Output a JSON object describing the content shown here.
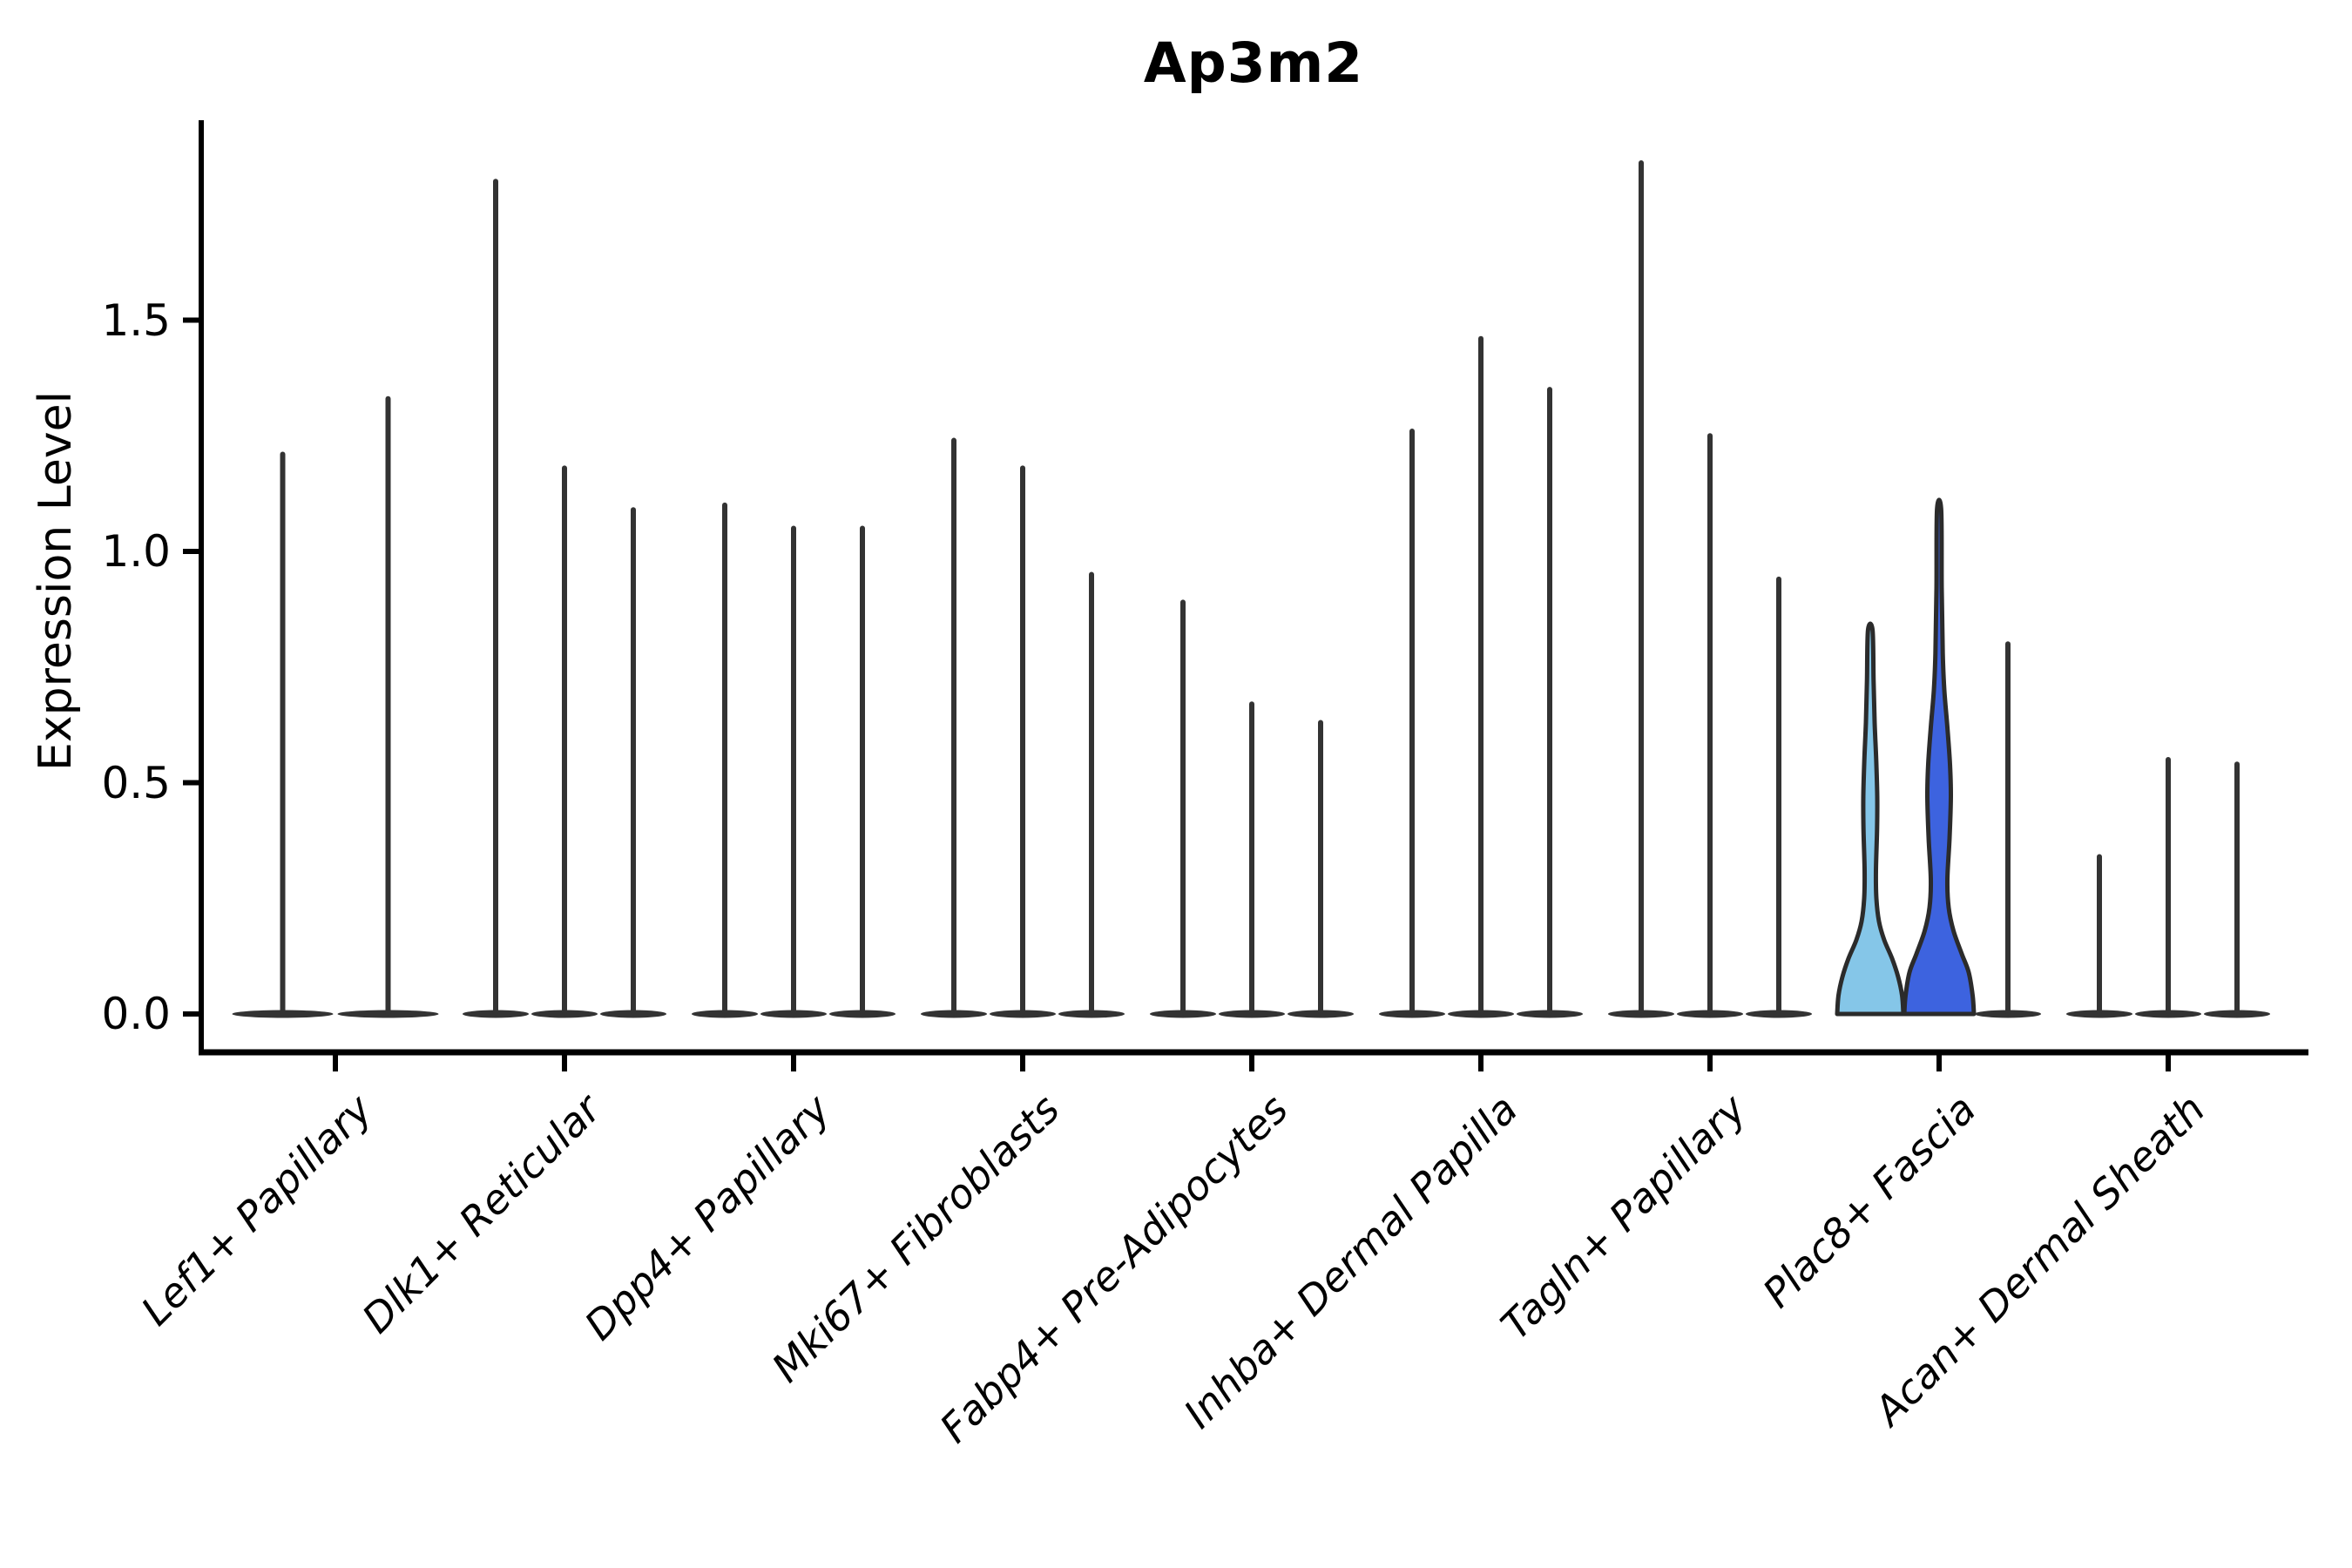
{
  "chart_data": {
    "type": "violin",
    "title": "Ap3m2",
    "xlabel": "",
    "ylabel": "Expression Level",
    "yticks": [
      "0.0",
      "0.5",
      "1.0",
      "1.5"
    ],
    "ytick_values": [
      0.0,
      0.5,
      1.0,
      1.5
    ],
    "ylim": [
      0.0,
      1.93
    ],
    "grid": false,
    "legend": "none",
    "colors": {
      "spike": "#333333",
      "spine": "#000000",
      "violin_edge": "#2b2b2b",
      "fascia_light_blue": "#85C6E8",
      "fascia_royal_blue": "#3D63DF"
    },
    "groups": [
      {
        "label": "Lef1+ Papillary",
        "violins": [
          {
            "max": 1.21
          },
          {
            "max": 1.33
          }
        ]
      },
      {
        "label": "Dlk1+ Reticular",
        "violins": [
          {
            "max": 1.8
          },
          {
            "max": 1.18
          },
          {
            "max": 1.09
          }
        ]
      },
      {
        "label": "Dpp4+ Papillary",
        "violins": [
          {
            "max": 1.1
          },
          {
            "max": 1.05
          },
          {
            "max": 1.05
          }
        ]
      },
      {
        "label": "Mki67+ Fibroblasts",
        "violins": [
          {
            "max": 1.24
          },
          {
            "max": 1.18
          },
          {
            "max": 0.95
          }
        ]
      },
      {
        "label": "Fabp4+ Pre-Adipocytes",
        "violins": [
          {
            "max": 0.89
          },
          {
            "max": 0.67
          },
          {
            "max": 0.63
          }
        ]
      },
      {
        "label": "Inhba+ Dermal Papilla",
        "violins": [
          {
            "max": 1.26
          },
          {
            "max": 1.46
          },
          {
            "max": 1.35
          }
        ]
      },
      {
        "label": "Tagln+ Papillary",
        "violins": [
          {
            "max": 1.84
          },
          {
            "max": 1.25
          },
          {
            "max": 0.94
          }
        ]
      },
      {
        "label": "Plac8+ Fascia",
        "violins": [
          {
            "max": 0.83,
            "fill": "#85C6E8",
            "profile": [
              [
                0,
                38
              ],
              [
                0.04,
                36.5
              ],
              [
                0.08,
                32
              ],
              [
                0.12,
                25
              ],
              [
                0.16,
                16
              ],
              [
                0.2,
                10
              ],
              [
                0.25,
                7
              ],
              [
                0.31,
                6.5
              ],
              [
                0.4,
                7.8
              ],
              [
                0.47,
                8
              ],
              [
                0.55,
                6.8
              ],
              [
                0.63,
                5
              ],
              [
                0.72,
                3.8
              ],
              [
                0.83,
                2.6
              ]
            ]
          },
          {
            "max": 1.09,
            "fill": "#3D63DF",
            "profile": [
              [
                0,
                40
              ],
              [
                0.04,
                38.5
              ],
              [
                0.09,
                34
              ],
              [
                0.13,
                26
              ],
              [
                0.18,
                16.5
              ],
              [
                0.23,
                11
              ],
              [
                0.29,
                9.5
              ],
              [
                0.38,
                12
              ],
              [
                0.47,
                13.5
              ],
              [
                0.54,
                12.5
              ],
              [
                0.62,
                9.5
              ],
              [
                0.7,
                6
              ],
              [
                0.78,
                4.2
              ],
              [
                0.92,
                3
              ],
              [
                1.09,
                2.4
              ]
            ]
          },
          {
            "max": 0.8
          }
        ]
      },
      {
        "label": "Acan+ Dermal Sheath",
        "violins": [
          {
            "max": 0.34
          },
          {
            "max": 0.55
          },
          {
            "max": 0.54
          }
        ]
      }
    ]
  }
}
